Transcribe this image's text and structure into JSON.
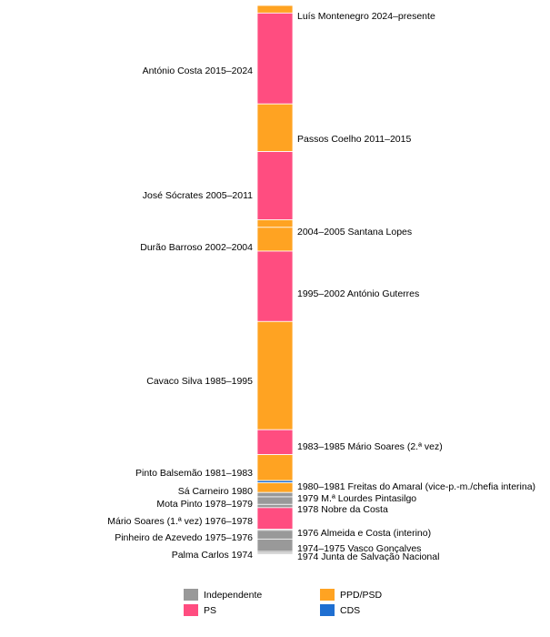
{
  "chart_data": {
    "type": "bar",
    "orientation": "vertical-timeline",
    "title": "",
    "y_range": [
      1974.3,
      2025.0
    ],
    "party_colors": {
      "Independente": "#999999",
      "PS": "#ff4d80",
      "PPD/PSD": "#ffa322",
      "CDS": "#1f6fd1"
    },
    "segments": [
      {
        "start": 2024.3,
        "end": 2025.0,
        "party": "PPD/PSD",
        "label": "Luís Montenegro 2024–presente",
        "side": "right"
      },
      {
        "start": 2015.9,
        "end": 2024.3,
        "party": "PS",
        "label": "António Costa 2015–2024",
        "side": "left"
      },
      {
        "start": 2011.5,
        "end": 2015.9,
        "party": "PPD/PSD",
        "label": "Passos Coelho 2011–2015",
        "side": "right"
      },
      {
        "start": 2005.2,
        "end": 2011.5,
        "party": "PS",
        "label": "José Sócrates 2005–2011",
        "side": "left"
      },
      {
        "start": 2004.5,
        "end": 2005.2,
        "party": "PPD/PSD",
        "label": "2004–2005 Santana Lopes",
        "side": "right"
      },
      {
        "start": 2002.3,
        "end": 2004.5,
        "party": "PPD/PSD",
        "label": "Durão Barroso 2002–2004",
        "side": "left"
      },
      {
        "start": 1995.8,
        "end": 2002.3,
        "party": "PS",
        "label": "1995–2002 António Guterres",
        "side": "right"
      },
      {
        "start": 1985.8,
        "end": 1995.8,
        "party": "PPD/PSD",
        "label": "Cavaco Silva 1985–1995",
        "side": "left"
      },
      {
        "start": 1983.5,
        "end": 1985.8,
        "party": "PS",
        "label": "1983–1985 Mário Soares (2.ª vez)",
        "side": "right"
      },
      {
        "start": 1981.1,
        "end": 1983.5,
        "party": "PPD/PSD",
        "label": "Pinto Balsemão 1981–1983",
        "side": "left"
      },
      {
        "start": 1980.9,
        "end": 1981.1,
        "party": "CDS",
        "label": "1980–1981 Freitas do Amaral (vice-p.-m./chefia interina)",
        "side": "right"
      },
      {
        "start": 1980.0,
        "end": 1980.9,
        "party": "PPD/PSD",
        "label": "Sá Carneiro 1980",
        "side": "left"
      },
      {
        "start": 1979.6,
        "end": 1980.0,
        "party": "Independente",
        "label": "1979 M.ª Lourdes Pintasilgo",
        "side": "right"
      },
      {
        "start": 1978.9,
        "end": 1979.6,
        "party": "Independente",
        "label": "Mota Pinto 1978–1979",
        "side": "left"
      },
      {
        "start": 1978.6,
        "end": 1978.9,
        "party": "Independente",
        "label": "1978 Nobre da Costa",
        "side": "right"
      },
      {
        "start": 1976.6,
        "end": 1978.6,
        "party": "PS",
        "label": "Mário Soares (1.ª vez) 1976–1978",
        "side": "left"
      },
      {
        "start": 1976.5,
        "end": 1976.6,
        "party": "Independente",
        "label": "1976 Almeida e Costa (interino)",
        "side": "right"
      },
      {
        "start": 1975.7,
        "end": 1976.5,
        "party": "Independente",
        "label": "Pinheiro de Azevedo 1975–1976",
        "side": "left"
      },
      {
        "start": 1974.55,
        "end": 1975.7,
        "party": "Independente",
        "label": "1974–1975 Vasco Gonçalves",
        "side": "right"
      },
      {
        "start": 1974.4,
        "end": 1974.55,
        "party": "Independente",
        "label": "Palma Carlos 1974",
        "side": "left"
      },
      {
        "start": 1974.3,
        "end": 1974.4,
        "party": "Independente",
        "label": "1974 Junta de Salvação Nacional",
        "side": "right"
      }
    ],
    "legend": {
      "placement": "bottom",
      "entries": [
        "Independente",
        "PS",
        "PPD/PSD",
        "CDS"
      ]
    }
  }
}
